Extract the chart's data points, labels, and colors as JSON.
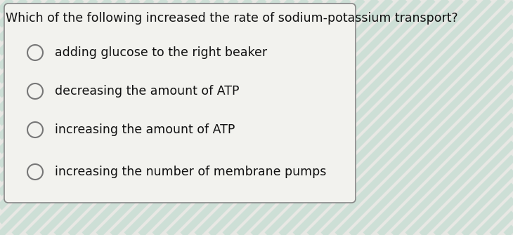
{
  "question": "Which of the following increased the rate of sodium-potassium transport?",
  "options": [
    "adding glucose to the right beaker",
    "decreasing the amount of ATP",
    "increasing the amount of ATP",
    "increasing the number of membrane pumps"
  ],
  "bg_color": "#e8e8e4",
  "stripe_color_light": "#f0f0ec",
  "stripe_color_dark": "#b8d8cc",
  "box_bg_color": "#f2f2ee",
  "box_edge_color": "#888888",
  "question_color": "#111111",
  "option_color": "#111111",
  "circle_edge_color": "#777777",
  "question_fontsize": 12.5,
  "option_fontsize": 12.5,
  "fig_width": 7.3,
  "fig_height": 3.35
}
